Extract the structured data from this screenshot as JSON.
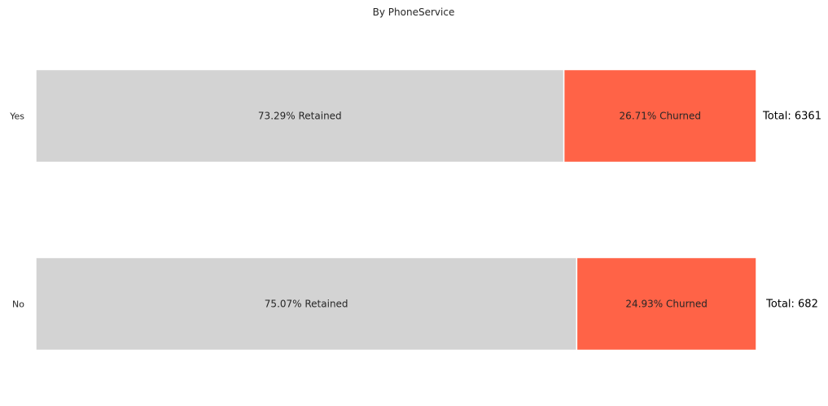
{
  "chart_data": {
    "type": "bar",
    "orientation": "horizontal",
    "stacked": true,
    "normalized": true,
    "title": "By PhoneService",
    "categories": [
      "Yes",
      "No"
    ],
    "series": [
      {
        "name": "Retained",
        "values": [
          73.29,
          75.07
        ],
        "color": "#d3d3d3"
      },
      {
        "name": "Churned",
        "values": [
          26.71,
          24.93
        ],
        "color": "#ff6347"
      }
    ],
    "segment_labels": [
      [
        "73.29% Retained",
        "26.71% Churned"
      ],
      [
        "75.07% Retained",
        "24.93% Churned"
      ]
    ],
    "totals": [
      "Total: 6361",
      "Total: 682"
    ],
    "xlim": [
      0,
      100
    ],
    "grid": false,
    "legend": "none"
  }
}
